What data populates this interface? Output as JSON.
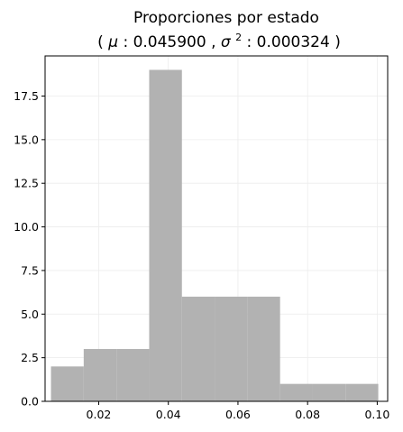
{
  "chart_data": {
    "type": "bar",
    "title_line1": "Proporciones por estado",
    "title_line2": {
      "open": "( ",
      "mu_symbol": "μ",
      "mu_sep": ": ",
      "mu_value": "0.045900",
      "comma": ", ",
      "sigma_symbol": "σ",
      "sigma_sup": "2",
      "sigma_sep": ": ",
      "sigma_value": "0.000324",
      "close": " )"
    },
    "xlabel": "",
    "ylabel": "",
    "xlim": [
      0.0046,
      0.103
    ],
    "ylim": [
      0,
      19.8
    ],
    "grid": true,
    "bar_color": "#b2b2b2",
    "grid_color": "#ececec",
    "bins": [
      {
        "x0": 0.0063,
        "x1": 0.0157,
        "count": 2
      },
      {
        "x0": 0.0157,
        "x1": 0.0251,
        "count": 3
      },
      {
        "x0": 0.0251,
        "x1": 0.0345,
        "count": 3
      },
      {
        "x0": 0.0345,
        "x1": 0.0439,
        "count": 19
      },
      {
        "x0": 0.0439,
        "x1": 0.0533,
        "count": 6
      },
      {
        "x0": 0.0533,
        "x1": 0.0627,
        "count": 6
      },
      {
        "x0": 0.0627,
        "x1": 0.0721,
        "count": 6
      },
      {
        "x0": 0.0721,
        "x1": 0.0815,
        "count": 1
      },
      {
        "x0": 0.0815,
        "x1": 0.0909,
        "count": 1
      },
      {
        "x0": 0.0909,
        "x1": 0.1003,
        "count": 1
      }
    ],
    "x_ticks": [
      {
        "value": 0.02,
        "label": "0.02"
      },
      {
        "value": 0.04,
        "label": "0.04"
      },
      {
        "value": 0.06,
        "label": "0.06"
      },
      {
        "value": 0.08,
        "label": "0.08"
      },
      {
        "value": 0.1,
        "label": "0.10"
      }
    ],
    "y_ticks": [
      {
        "value": 0.0,
        "label": "0.0"
      },
      {
        "value": 2.5,
        "label": "2.5"
      },
      {
        "value": 5.0,
        "label": "5.0"
      },
      {
        "value": 7.5,
        "label": "7.5"
      },
      {
        "value": 10.0,
        "label": "10.0"
      },
      {
        "value": 12.5,
        "label": "12.5"
      },
      {
        "value": 15.0,
        "label": "15.0"
      },
      {
        "value": 17.5,
        "label": "17.5"
      }
    ]
  }
}
